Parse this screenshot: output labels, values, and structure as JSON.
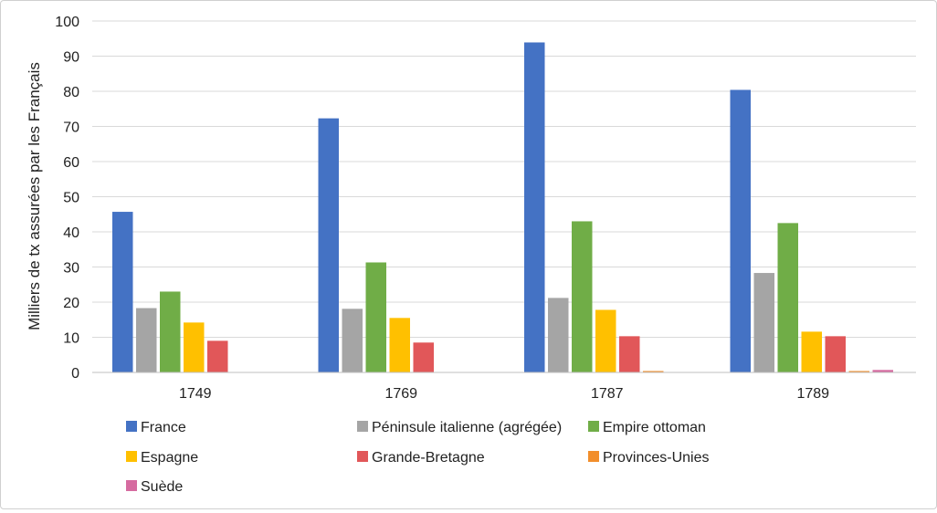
{
  "chart_data": {
    "type": "bar",
    "title": "",
    "xlabel": "",
    "ylabel": "Milliers de tx assurées par les Français",
    "ylim": [
      0,
      100
    ],
    "yticks": [
      0,
      10,
      20,
      30,
      40,
      50,
      60,
      70,
      80,
      90,
      100
    ],
    "grid": true,
    "legend_position": "bottom",
    "categories": [
      "1749",
      "1769",
      "1787",
      "1789"
    ],
    "series": [
      {
        "name": "France",
        "color": "#4472C4",
        "values": [
          45.7,
          72.3,
          93.9,
          80.4
        ]
      },
      {
        "name": "Péninsule italienne (agrégée)",
        "color": "#A5A5A5",
        "values": [
          18.3,
          18.1,
          21.2,
          28.3
        ]
      },
      {
        "name": "Empire ottoman",
        "color": "#70AD47",
        "values": [
          23.0,
          31.3,
          43.0,
          42.5
        ]
      },
      {
        "name": "Espagne",
        "color": "#FFC000",
        "values": [
          14.2,
          15.5,
          17.8,
          11.6
        ]
      },
      {
        "name": "Grande-Bretagne",
        "color": "#E15759",
        "values": [
          9.0,
          8.5,
          10.3,
          10.3
        ]
      },
      {
        "name": "Provinces-Unies",
        "color": "#F28E2B",
        "values": [
          0,
          0,
          0.4,
          0.4
        ]
      },
      {
        "name": "Suède",
        "color": "#D66BA0",
        "values": [
          0,
          0,
          0,
          0.7
        ]
      }
    ]
  }
}
